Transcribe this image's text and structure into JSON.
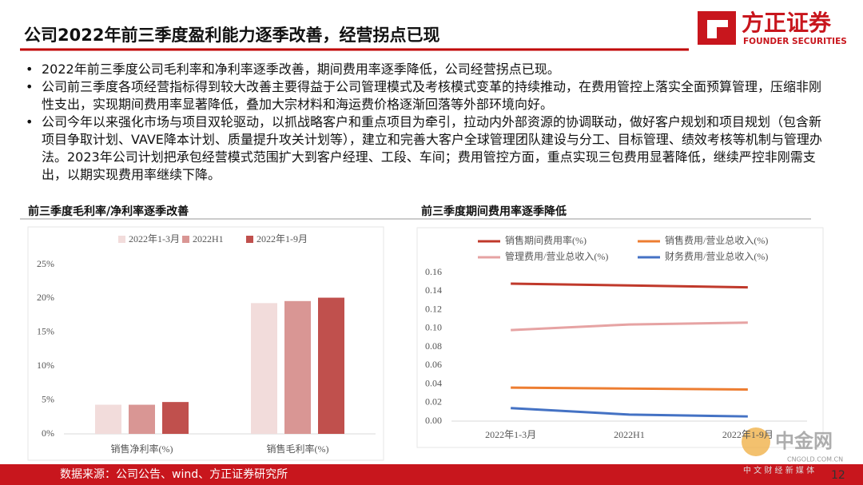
{
  "header": {
    "title": "公司2022年前三季度盈利能力逐季改善，经营拐点已现"
  },
  "logo": {
    "name": "方正证券",
    "en": "FOUNDER SECURITIES"
  },
  "bullets": [
    "2022年前三季度公司毛利率和净利率逐季改善，期间费用率逐季降低，公司经营拐点已现。",
    "公司前三季度各项经营指标得到较大改善主要得益于公司管理模式及考核模式变革的持续推动，在费用管控上落实全面预算管理，压缩非刚性支出，实现期间费用率显著降低，叠加大宗材料和海运费价格逐渐回落等外部环境向好。",
    "公司今年以来强化市场与项目双轮驱动，以抓战略客户和重点项目为牵引，拉动内外部资源的协调联动，做好客户规划和项目规划（包含新项目争取计划、VAVE降本计划、质量提升攻关计划等），建立和完善大客户全球管理团队建设与分工、目标管理、绩效考核等机制与管理办法。2023年公司计划把承包经营模式范围扩大到客户经理、工段、车间；费用管控方面，重点实现三包费用显著降低，继续严控非刚需支出，以期实现费用率继续下降。"
  ],
  "chart_data": [
    {
      "type": "bar",
      "title": "前三季度毛利率/净利率逐季改善",
      "categories": [
        "销售净利率(%)",
        "销售毛利率(%)"
      ],
      "series": [
        {
          "name": "2022年1-3月",
          "color": "#f2dcdb",
          "values": [
            4.3,
            19.3
          ]
        },
        {
          "name": "2022H1",
          "color": "#d99694",
          "values": [
            4.3,
            19.6
          ]
        },
        {
          "name": "2022年1-9月",
          "color": "#c0504d",
          "values": [
            4.7,
            20.1
          ]
        }
      ],
      "ylim": [
        0,
        25
      ],
      "yticks": [
        {
          "value": 0,
          "label": "0%"
        },
        {
          "value": 5,
          "label": "5%"
        },
        {
          "value": 10,
          "label": "10%"
        },
        {
          "value": 15,
          "label": "15%"
        },
        {
          "value": 20,
          "label": "20%"
        },
        {
          "value": 25,
          "label": "25%"
        }
      ]
    },
    {
      "type": "line",
      "title": "前三季度期间费用率逐季降低",
      "categories": [
        "2022年1-3月",
        "2022H1",
        "2022年1-9月"
      ],
      "series": [
        {
          "name": "销售期间费用率(%)",
          "color": "#c0392b",
          "values": [
            0.148,
            0.146,
            0.144
          ]
        },
        {
          "name": "销售费用/营业总收入(%)",
          "color": "#ed7d31",
          "values": [
            0.036,
            0.035,
            0.034
          ]
        },
        {
          "name": "管理费用/营业总收入(%)",
          "color": "#e6a3a3",
          "values": [
            0.098,
            0.104,
            0.106
          ]
        },
        {
          "name": "财务费用/营业总收入(%)",
          "color": "#4472c4",
          "values": [
            0.014,
            0.007,
            0.005
          ]
        }
      ],
      "ylim": [
        0,
        0.16
      ],
      "yticks": [
        {
          "value": 0,
          "label": "0.00"
        },
        {
          "value": 0.02,
          "label": "0.02"
        },
        {
          "value": 0.04,
          "label": "0.04"
        },
        {
          "value": 0.06,
          "label": "0.06"
        },
        {
          "value": 0.08,
          "label": "0.08"
        },
        {
          "value": 0.1,
          "label": "0.10"
        },
        {
          "value": 0.12,
          "label": "0.12"
        },
        {
          "value": 0.14,
          "label": "0.14"
        },
        {
          "value": 0.16,
          "label": "0.16"
        }
      ]
    }
  ],
  "footer": {
    "source": "数据来源：公司公告、wind、方正证券研究所",
    "page": "12"
  },
  "watermark": {
    "name": "中金网",
    "site": "CNGOLD.COM.CN",
    "tagline": "中 文 财 经 新 媒 体"
  }
}
